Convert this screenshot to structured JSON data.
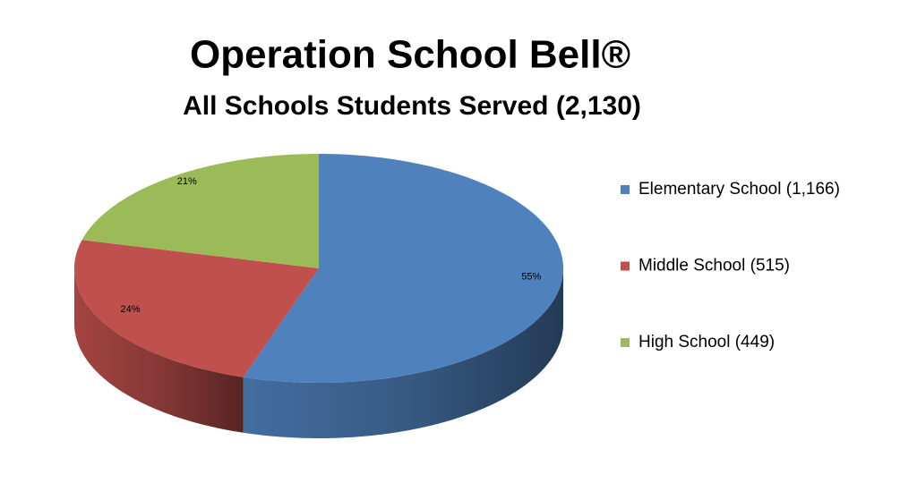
{
  "chart_data": {
    "type": "pie",
    "title": "Operation School Bell®",
    "subtitle": "All Schools Students Served (2,130)",
    "categories": [
      "Elementary School (1,166)",
      "Middle School (515)",
      "High School (449)"
    ],
    "values": [
      55,
      24,
      21
    ],
    "value_labels": [
      "55%",
      "24%",
      "21%"
    ],
    "colors": [
      "#4f81bd",
      "#c0504d",
      "#9bbb59"
    ],
    "legend": "right"
  }
}
